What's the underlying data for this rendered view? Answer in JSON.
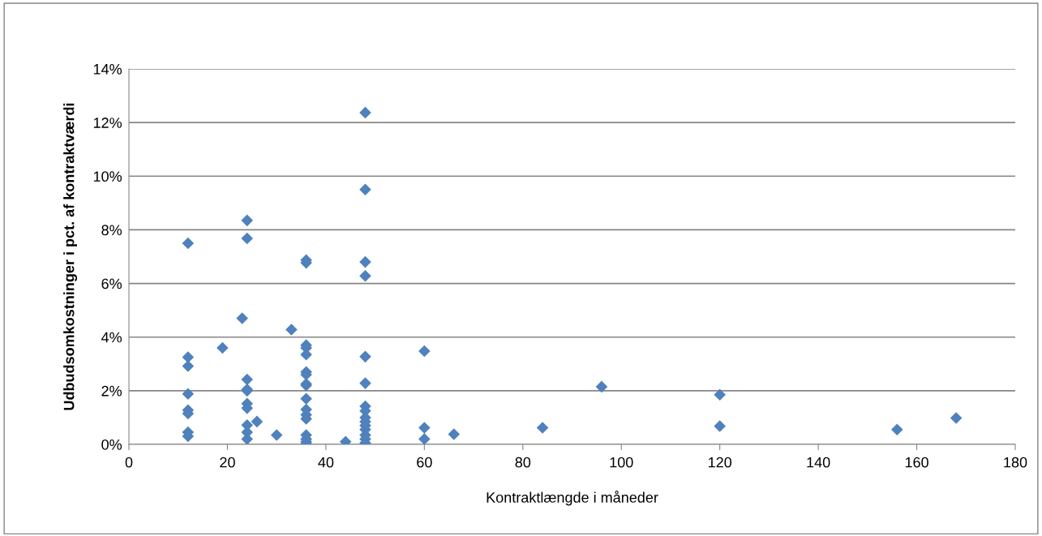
{
  "chart_data": {
    "type": "scatter",
    "xlabel": "Kontraktlængde i måneder",
    "ylabel": "Udbudsomkostninger i pct. af kontraktværdi",
    "series": [
      {
        "color": "#4f81bd",
        "x": [
          12,
          12,
          12,
          12,
          12,
          12,
          12,
          12,
          19,
          23,
          24,
          24,
          24,
          24,
          24,
          24,
          24,
          24,
          24,
          24,
          26,
          30,
          33,
          36,
          36,
          36,
          36,
          36,
          36,
          36,
          36,
          36,
          36,
          36,
          36,
          36,
          36,
          36,
          36,
          36,
          44,
          48,
          48,
          48,
          48,
          48,
          48,
          48,
          48,
          48,
          48,
          48,
          48,
          48,
          48,
          48,
          60,
          60,
          60,
          66,
          84,
          96,
          120,
          120,
          156,
          168
        ],
        "values": [
          7.5,
          3.25,
          2.92,
          1.88,
          1.28,
          1.15,
          0.45,
          0.3,
          3.6,
          4.7,
          8.35,
          7.68,
          2.42,
          2.05,
          2.0,
          1.52,
          1.35,
          0.72,
          0.45,
          0.2,
          0.85,
          0.35,
          4.28,
          6.87,
          6.77,
          3.7,
          3.6,
          3.35,
          2.7,
          2.6,
          2.25,
          2.2,
          1.7,
          1.3,
          1.1,
          0.95,
          0.35,
          0.2,
          0.1,
          0.02,
          0.1,
          12.37,
          9.5,
          6.8,
          6.28,
          3.27,
          2.28,
          1.42,
          1.25,
          1.0,
          0.85,
          0.7,
          0.55,
          0.35,
          0.2,
          0.05,
          3.48,
          0.62,
          0.2,
          0.38,
          0.62,
          2.15,
          1.85,
          0.68,
          0.55,
          0.98
        ]
      }
    ],
    "xlim": [
      0,
      180
    ],
    "xticks": [
      0,
      20,
      40,
      60,
      80,
      100,
      120,
      140,
      160,
      180
    ],
    "ylim": [
      0,
      14
    ],
    "yticks": [
      {
        "value": 0,
        "label": "0%"
      },
      {
        "value": 2,
        "label": "2%"
      },
      {
        "value": 4,
        "label": "4%"
      },
      {
        "value": 6,
        "label": "6%"
      },
      {
        "value": 8,
        "label": "8%"
      },
      {
        "value": 10,
        "label": "10%"
      },
      {
        "value": 12,
        "label": "12%"
      },
      {
        "value": 14,
        "label": "14%"
      }
    ],
    "grid": "y",
    "marker": "diamond",
    "legend": false
  }
}
